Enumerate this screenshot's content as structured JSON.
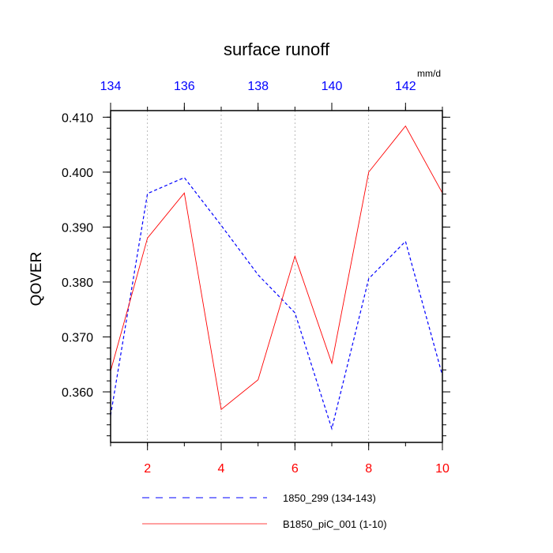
{
  "chart_data": {
    "type": "line",
    "title": "surface runoff",
    "units": "mm/d",
    "ylabel": "QOVER",
    "ylim": [
      0.3508,
      0.4112
    ],
    "grid": "vertical dashed at bottom-axis major ticks",
    "legend_placement": "bottom, below plot",
    "y_ticks": [
      "0.360",
      "0.370",
      "0.380",
      "0.390",
      "0.400",
      "0.410"
    ],
    "bottom_axis": {
      "xlim": [
        1,
        10
      ],
      "tick_labels": [
        "2",
        "4",
        "6",
        "8",
        "10"
      ],
      "color": "#ff0000"
    },
    "top_axis": {
      "xlim": [
        134,
        143
      ],
      "tick_labels": [
        "134",
        "136",
        "138",
        "140",
        "142"
      ],
      "color": "#0000ff"
    },
    "series": [
      {
        "name": "1850_299 (134-143)",
        "axis": "top",
        "color": "#0000ff",
        "style": "dashed",
        "x": [
          134,
          135,
          136,
          137,
          138,
          139,
          140,
          141,
          142,
          143
        ],
        "y": [
          0.3557,
          0.3961,
          0.399,
          0.3903,
          0.3813,
          0.3744,
          0.3533,
          0.3806,
          0.3874,
          0.363
        ]
      },
      {
        "name": "B1850_piC_001 (1-10)",
        "axis": "bottom",
        "color": "#ff0000",
        "style": "solid",
        "x": [
          1,
          2,
          3,
          4,
          5,
          6,
          7,
          8,
          9,
          10
        ],
        "y": [
          0.3638,
          0.388,
          0.3962,
          0.3568,
          0.3622,
          0.3847,
          0.3652,
          0.4,
          0.4084,
          0.3962
        ]
      }
    ]
  }
}
